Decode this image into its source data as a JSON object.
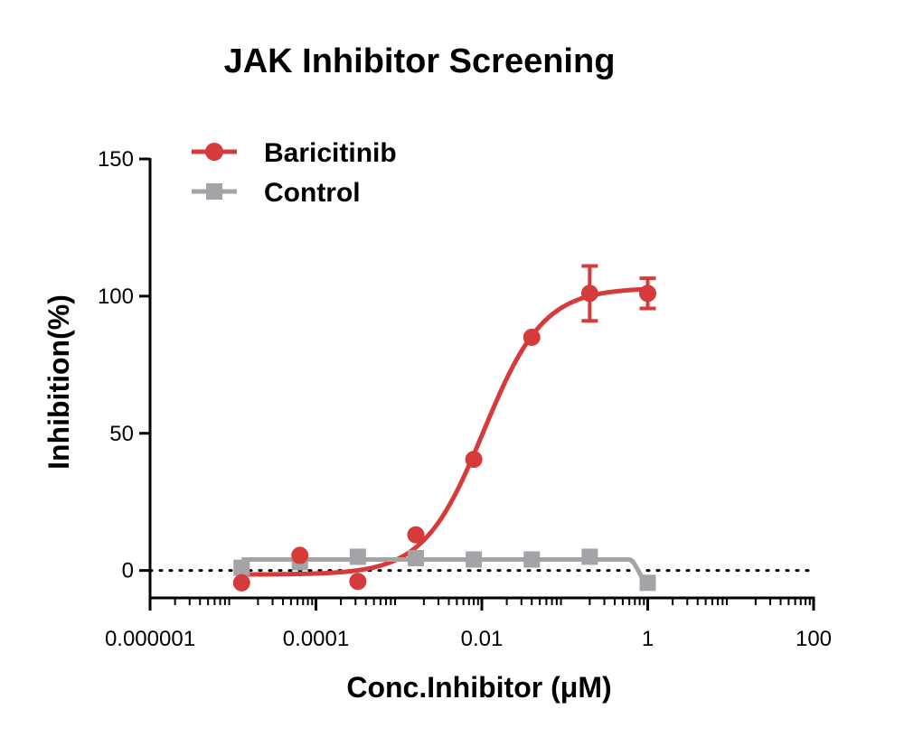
{
  "chart_data": {
    "type": "scatter",
    "title": "JAK Inhibitor Screening",
    "xlabel": "Conc.Inhibitor (μM)",
    "ylabel": "Inhibition(%)",
    "x_scale": "log",
    "xlim": [
      1e-06,
      100
    ],
    "ylim": [
      -10,
      150
    ],
    "x_ticks": [
      1e-06,
      0.0001,
      0.01,
      1,
      100
    ],
    "x_tick_labels": [
      "0.000001",
      "0.0001",
      "0.01",
      "1",
      "100"
    ],
    "y_ticks": [
      0,
      50,
      100,
      150
    ],
    "y_tick_labels": [
      "0",
      "50",
      "100",
      "150"
    ],
    "reference_line": {
      "y": 0,
      "style": "dotted"
    },
    "legend_position": "top-left",
    "series": [
      {
        "name": "Baricitinib",
        "color": "#d63b3b",
        "marker": "circle",
        "points": [
          {
            "x": 1.27e-05,
            "y": -4.5
          },
          {
            "x": 6.4e-05,
            "y": 5.5
          },
          {
            "x": 0.00032,
            "y": -4.0
          },
          {
            "x": 0.0016,
            "y": 13.0
          },
          {
            "x": 0.008,
            "y": 40.5
          },
          {
            "x": 0.04,
            "y": 85.0
          },
          {
            "x": 0.2,
            "y": 101.0,
            "error": 10.0
          },
          {
            "x": 1.0,
            "y": 101.0,
            "error": 5.5
          }
        ],
        "fit": {
          "bottom": -1.5,
          "top": 103.0,
          "ic50": 0.0105,
          "hill": 1.2
        }
      },
      {
        "name": "Control",
        "color": "#a3a3a8",
        "marker": "square",
        "points": [
          {
            "x": 1.27e-05,
            "y": 1.0
          },
          {
            "x": 6.4e-05,
            "y": 3.0
          },
          {
            "x": 0.00032,
            "y": 5.0
          },
          {
            "x": 0.0016,
            "y": 4.5
          },
          {
            "x": 0.008,
            "y": 4.0
          },
          {
            "x": 0.04,
            "y": 4.0
          },
          {
            "x": 0.2,
            "y": 5.0
          },
          {
            "x": 1.0,
            "y": -4.5
          }
        ],
        "fit": {
          "plateau": 4.0,
          "drop_start": 0.6,
          "drop_end": 1.0,
          "end_value": -4.5
        }
      }
    ]
  }
}
